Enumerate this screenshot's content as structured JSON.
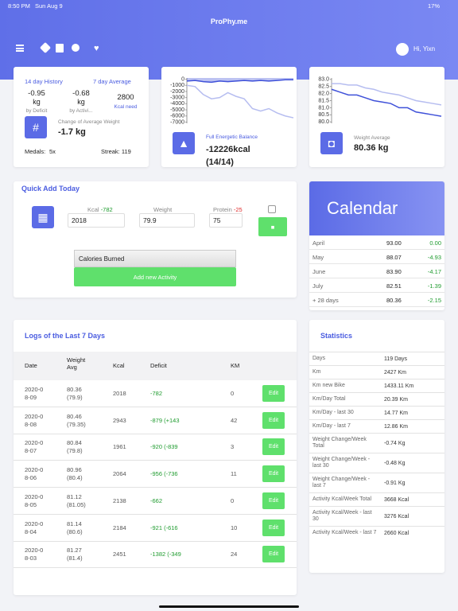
{
  "status": {
    "time": "8:50 PM",
    "date": "Sun Aug 9",
    "battery": "17%"
  },
  "header": {
    "title": "ProPhy.me",
    "user": "Hi, Yixn"
  },
  "summary": {
    "history": "14 day History",
    "average": "7 day Average",
    "stats": [
      {
        "value": "-0.95",
        "unit": "kg",
        "label": "by Deficit"
      },
      {
        "value": "-0.68",
        "unit": "kg",
        "label": "by Activi..."
      },
      {
        "value": "2800",
        "label": "Kcal need"
      }
    ],
    "icon": "#",
    "change_label": "Change of Average Weight",
    "change_value": "-1.7 kg",
    "medals_label": "Medals:",
    "medals_value": "5x",
    "streak": "Streak: 119"
  },
  "energy": {
    "label": "Full Energetic Balance",
    "value": "-12226kcal (14/14)",
    "chart": {
      "ylim": [
        -7200,
        200
      ],
      "yticks": [
        0,
        -1000,
        -2000,
        -3000,
        -4000,
        -5000,
        -6000,
        -7000
      ],
      "series": [
        {
          "color": "#3f51d9",
          "values": [
            -300,
            -200,
            -400,
            -500,
            -300,
            -400,
            -300,
            -200,
            -300,
            -200,
            -300,
            -200,
            -100,
            -100
          ]
        },
        {
          "color": "#b6bdf0",
          "values": [
            -1000,
            -1200,
            -2500,
            -3200,
            -3000,
            -2200,
            -2800,
            -3200,
            -4800,
            -5200,
            -4800,
            -5500,
            -6000,
            -6300
          ]
        }
      ]
    }
  },
  "weight": {
    "label": "Weight Average",
    "value": "80.36 kg",
    "chart": {
      "ylim": [
        79.9,
        83.1
      ],
      "yticks": [
        {
          "value": 83,
          "label": "83.0"
        },
        82.5,
        {
          "value": 82,
          "label": "82.0"
        },
        81.5,
        {
          "value": 81,
          "label": "81.0"
        },
        80.5,
        {
          "value": 80,
          "label": "80.0"
        }
      ],
      "series": [
        {
          "color": "#b6bdf0",
          "values": [
            82.7,
            82.7,
            82.6,
            82.6,
            82.4,
            82.3,
            82.1,
            82.0,
            81.9,
            81.7,
            81.5,
            81.4,
            81.3,
            81.2
          ]
        },
        {
          "color": "#3f51d9",
          "values": [
            82.3,
            82.1,
            81.9,
            81.9,
            81.7,
            81.5,
            81.4,
            81.3,
            81.0,
            81.0,
            80.7,
            80.6,
            80.5,
            80.4
          ]
        }
      ]
    }
  },
  "quick_add": {
    "title": "Quick Add Today",
    "kcal_label": "Kcal",
    "kcal_delta": "-782",
    "kcal": "2018",
    "weight_label": "Weight",
    "weight": "79.9",
    "protein_label": "Protein",
    "protein_delta": "-25",
    "protein": "75",
    "select": "Calories Burned",
    "button": "Add new Activity"
  },
  "calendar": {
    "title": "Calendar",
    "rows": [
      [
        "April",
        "93.00",
        "0.00"
      ],
      [
        "May",
        "88.07",
        "-4.93"
      ],
      [
        "June",
        "83.90",
        "-4.17"
      ],
      [
        "July",
        "82.51",
        "-1.39"
      ],
      [
        "+ 28 days",
        "80.36",
        "-2.15"
      ]
    ]
  },
  "logs": {
    "title": "Logs of the Last 7 Days",
    "headers": [
      "Date",
      "Weight Avg",
      "Kcal",
      "Deficit",
      "KM"
    ],
    "edit": "Edit",
    "rows": [
      [
        "2020-08-09",
        "80.36",
        "(79.9)",
        "2018",
        "-782",
        "0"
      ],
      [
        "2020-08-08",
        "80.46",
        "(79.35)",
        "2943",
        "-879 (+143",
        "42"
      ],
      [
        "2020-08-07",
        "80.84",
        "(79.8)",
        "1961",
        "-920 (-839",
        "3"
      ],
      [
        "2020-08-06",
        "80.96",
        "(80.4)",
        "2064",
        "-956 (-736",
        "11"
      ],
      [
        "2020-08-05",
        "81.12",
        "(81.05)",
        "2138",
        "-662",
        "0"
      ],
      [
        "2020-08-04",
        "81.14",
        "(80.6)",
        "2184",
        "-921 (-616",
        "10"
      ],
      [
        "2020-08-03",
        "81.27",
        "(81.4)",
        "2451",
        "-1382 (-349",
        "24"
      ]
    ]
  },
  "statistics": {
    "title": "Statistics",
    "rows": [
      [
        "Days",
        "119 Days"
      ],
      [
        "Km",
        "2427 Km"
      ],
      [
        "Km new Bike",
        "1433.11 Km"
      ],
      [
        "Km/Day Total",
        "20.39 Km"
      ],
      [
        "Km/Day - last 30",
        "14.77 Km"
      ],
      [
        "Km/Day - last 7",
        "12.86 Km"
      ],
      [
        "Weight Change/Week Total",
        "-0.74 Kg"
      ],
      [
        "Weight Change/Week - last 30",
        "-0.48 Kg"
      ],
      [
        "Weight Change/Week - last 7",
        "-0.91 Kg"
      ],
      [
        "Activity Kcal/Week Total",
        "3668 Kcal"
      ],
      [
        "Activity Kcal/Week - last 30",
        "3276 Kcal"
      ],
      [
        "Activity Kcal/Week - last 7",
        "2660 Kcal"
      ]
    ]
  }
}
